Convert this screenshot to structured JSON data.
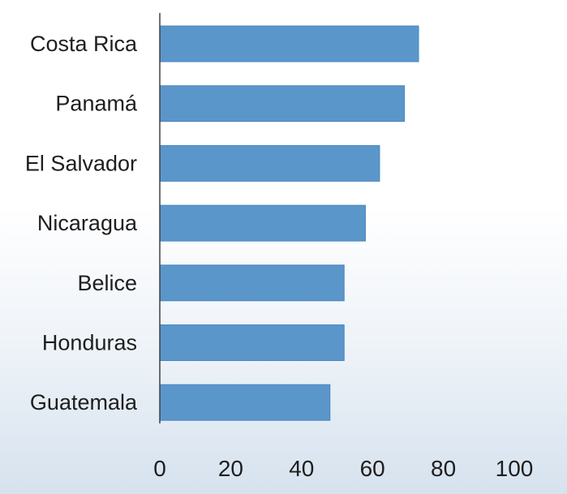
{
  "chart_data": {
    "type": "bar",
    "orientation": "horizontal",
    "categories": [
      "Costa Rica",
      "Panamá",
      "El Salvador",
      "Nicaragua",
      "Belice",
      "Honduras",
      "Guatemala"
    ],
    "values": [
      73,
      69,
      62,
      58,
      52,
      52,
      48
    ],
    "xlim": [
      0,
      100
    ],
    "x_ticks": [
      0,
      20,
      40,
      60,
      80,
      100
    ],
    "grid": false,
    "bar_color": "#5b96cb",
    "axis_color": "#404040"
  }
}
